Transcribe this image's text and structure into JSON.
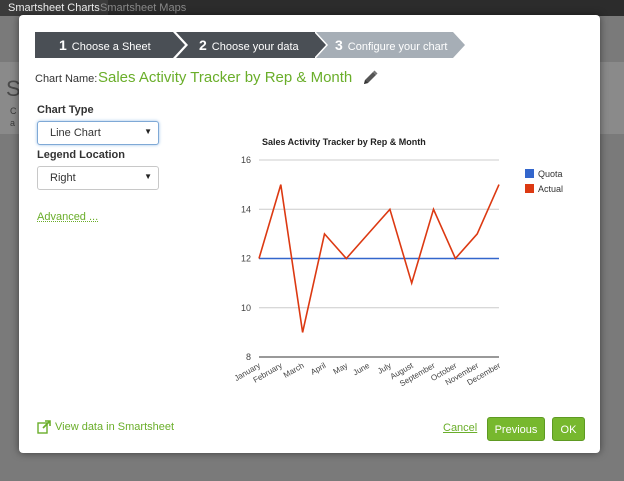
{
  "background": {
    "tabs": [
      "Smartsheet Charts",
      "Smartsheet Maps"
    ],
    "letter": "S",
    "small1": "C",
    "small2": "a"
  },
  "wizard": {
    "steps": [
      {
        "num": "1",
        "label": "Choose a Sheet"
      },
      {
        "num": "2",
        "label": "Choose your data"
      },
      {
        "num": "3",
        "label": "Configure your chart"
      }
    ],
    "colors": {
      "done": "#4a4f55",
      "current": "#a6aeb6"
    }
  },
  "chart_name": {
    "label": "Chart Name:",
    "value": "Sales Activity Tracker by Rep & Month",
    "edit_icon": "pencil-icon"
  },
  "options": {
    "chart_type_label": "Chart Type",
    "chart_type_value": "Line Chart",
    "legend_location_label": "Legend Location",
    "legend_location_value": "Right",
    "advanced_link": "Advanced ..."
  },
  "footer": {
    "view_link": "View data in Smartsheet",
    "view_icon": "external-link-icon",
    "cancel": "Cancel",
    "previous": "Previous",
    "ok": "OK"
  },
  "chart_data": {
    "type": "line",
    "title": "Sales Activity Tracker by Rep & Month",
    "categories": [
      "January",
      "February",
      "March",
      "April",
      "May",
      "June",
      "July",
      "August",
      "September",
      "October",
      "November",
      "December"
    ],
    "series": [
      {
        "name": "Quota",
        "color": "#3366cc",
        "values": [
          12,
          12,
          12,
          12,
          12,
          12,
          12,
          12,
          12,
          12,
          12,
          12
        ]
      },
      {
        "name": "Actual",
        "color": "#dc3912",
        "values": [
          12,
          15,
          9,
          13,
          12,
          13,
          14,
          11,
          14,
          12,
          13,
          15
        ]
      }
    ],
    "ylim": [
      8,
      16
    ],
    "yticks": [
      8,
      10,
      12,
      14,
      16
    ],
    "legend": "right",
    "grid": true
  }
}
